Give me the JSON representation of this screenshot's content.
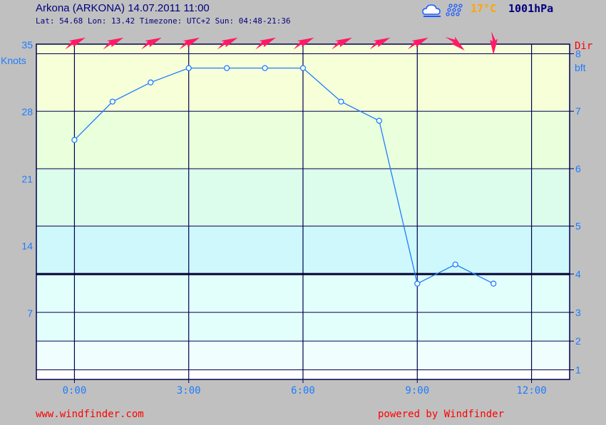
{
  "header": {
    "title": "Arkona (ARKONA) 14.07.2011 11:00",
    "meta": "Lat: 54.68 Lon: 13.42 Timezone: UTC+2 Sun: 04:48-21:36",
    "temperature": "17°C",
    "pressure": "1001hPa",
    "weather_icons": [
      "cloud-icon",
      "rain-icon"
    ]
  },
  "footer": {
    "left": "www.windfinder.com",
    "right": "powered by Windfinder"
  },
  "colors": {
    "background": "#c0c0c0",
    "line": "#1e7cff",
    "axis_text": "#1e7cff",
    "direction_label": "#ff0000",
    "arrow": "#ff1a66",
    "grid": "#000050",
    "temperature": "#ffa500",
    "title": "#000080"
  },
  "chart_data": {
    "type": "line",
    "ylabel": "Knots",
    "y2label": "bft",
    "dir_label": "Dir",
    "x_ticks": [
      "0:00",
      "3:00",
      "6:00",
      "9:00",
      "12:00"
    ],
    "x_tick_hours": [
      0,
      3,
      6,
      9,
      12
    ],
    "xlim": [
      -1,
      13
    ],
    "ylim": [
      0,
      35
    ],
    "y_ticks": [
      7,
      14,
      21,
      28,
      35
    ],
    "bft_ticks": [
      {
        "label": "1",
        "knots": 1
      },
      {
        "label": "2",
        "knots": 4
      },
      {
        "label": "3",
        "knots": 7
      },
      {
        "label": "4",
        "knots": 11
      },
      {
        "label": "5",
        "knots": 16
      },
      {
        "label": "6",
        "knots": 22
      },
      {
        "label": "7",
        "knots": 28
      },
      {
        "label": "8",
        "knots": 34
      }
    ],
    "bands": [
      {
        "from": 0,
        "to": 1,
        "color": "#ffffff"
      },
      {
        "from": 1,
        "to": 4,
        "color": "#f0fffe"
      },
      {
        "from": 4,
        "to": 11,
        "color": "#e2fffc"
      },
      {
        "from": 11,
        "to": 16,
        "color": "#cff8fc"
      },
      {
        "from": 16,
        "to": 22,
        "color": "#dcfcec"
      },
      {
        "from": 22,
        "to": 28,
        "color": "#eaffdc"
      },
      {
        "from": 28,
        "to": 35,
        "color": "#f6ffd8"
      }
    ],
    "threshold_knots": 11,
    "series": [
      {
        "x": [
          0,
          1,
          2,
          3,
          4,
          5,
          6,
          7,
          8,
          9,
          10,
          11
        ],
        "values": [
          25,
          29,
          31,
          32.5,
          32.5,
          32.5,
          32.5,
          29,
          27,
          10,
          12,
          10
        ]
      }
    ],
    "wind_direction_hours": [
      0,
      1,
      2,
      3,
      4,
      5,
      6,
      7,
      8,
      9,
      10,
      11
    ],
    "wind_direction_deg": [
      245,
      245,
      245,
      245,
      245,
      245,
      245,
      245,
      245,
      245,
      310,
      360
    ],
    "grid": true
  }
}
